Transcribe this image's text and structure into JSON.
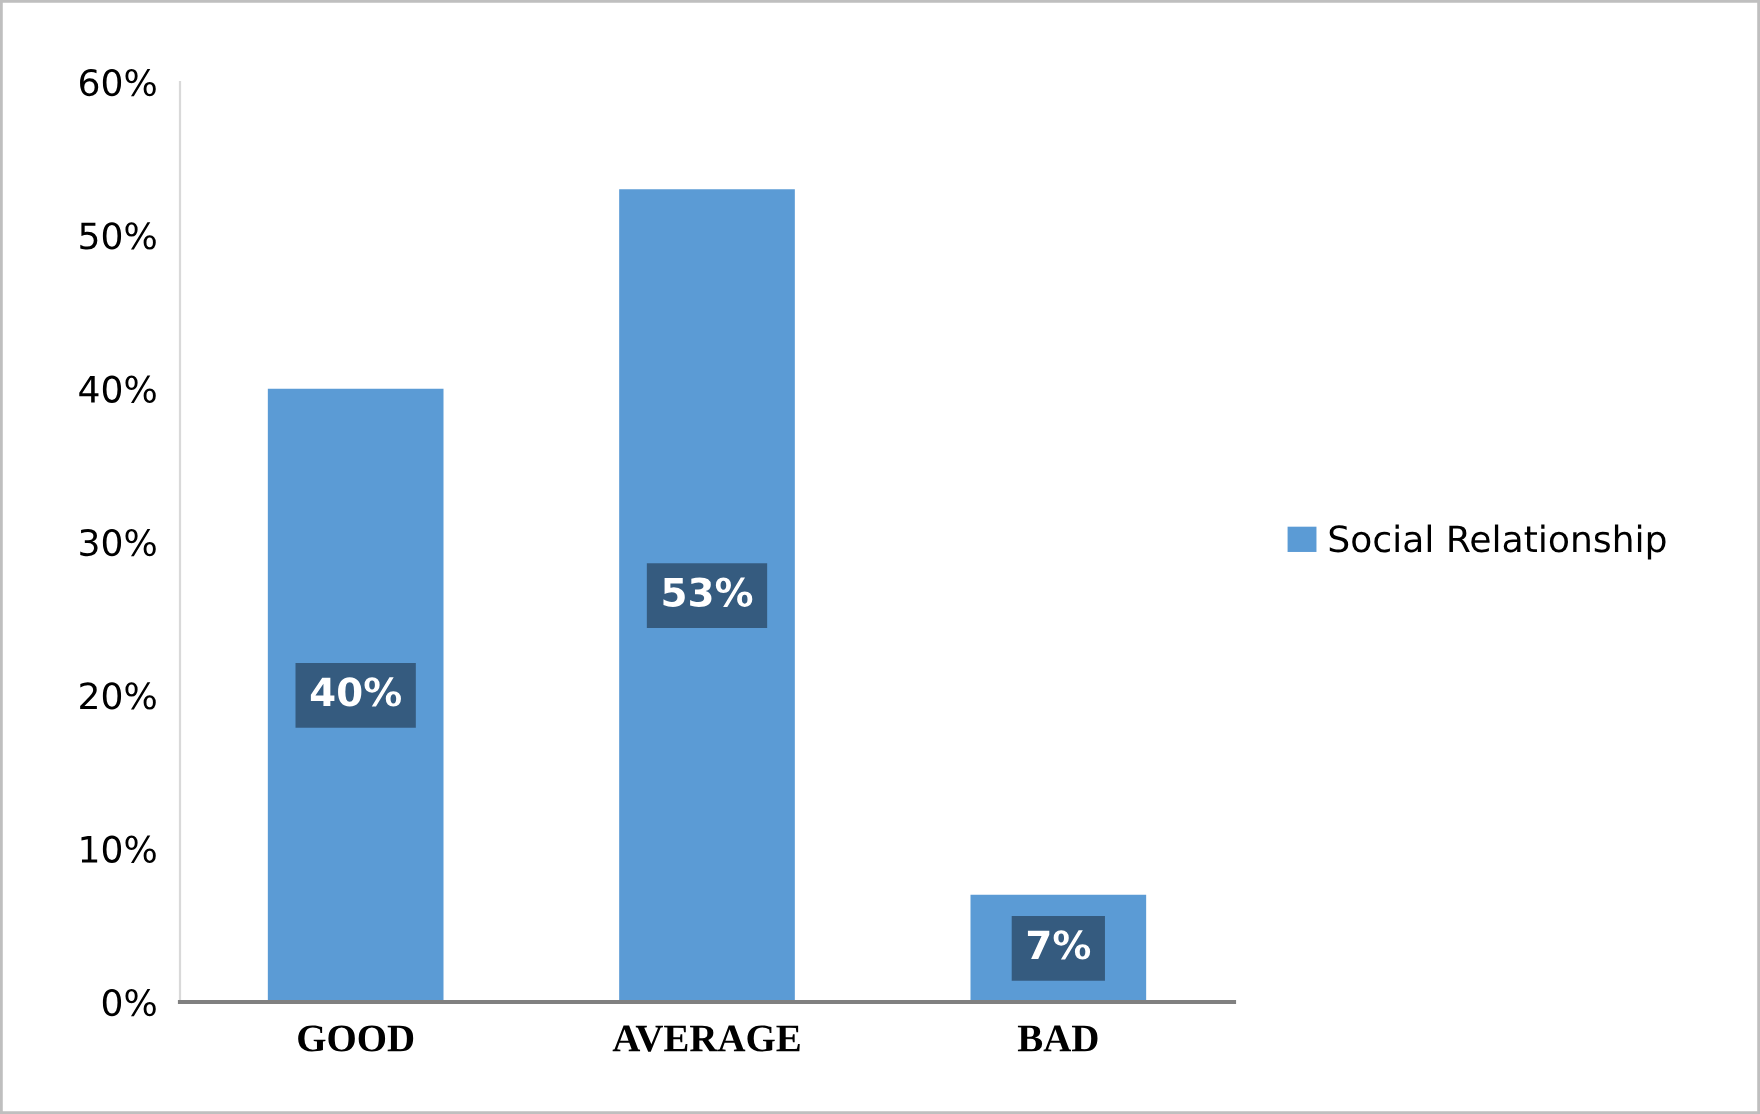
{
  "chart_data": {
    "type": "bar",
    "categories": [
      "GOOD",
      "AVERAGE",
      "BAD"
    ],
    "series": [
      {
        "name": "Social Relationship",
        "color": "#5b9bd5",
        "values": [
          40,
          53,
          7
        ]
      }
    ],
    "ylim": [
      0,
      60
    ],
    "yticks": [
      {
        "value": 0,
        "label": "0%"
      },
      {
        "value": 10,
        "label": "10%"
      },
      {
        "value": 20,
        "label": "20%"
      },
      {
        "value": 30,
        "label": "30%"
      },
      {
        "value": 40,
        "label": "40%"
      },
      {
        "value": 50,
        "label": "50%"
      },
      {
        "value": 60,
        "label": "60%"
      }
    ],
    "value_labels": [
      "40%",
      "53%",
      "7%"
    ],
    "legend": "right",
    "grid": false
  }
}
